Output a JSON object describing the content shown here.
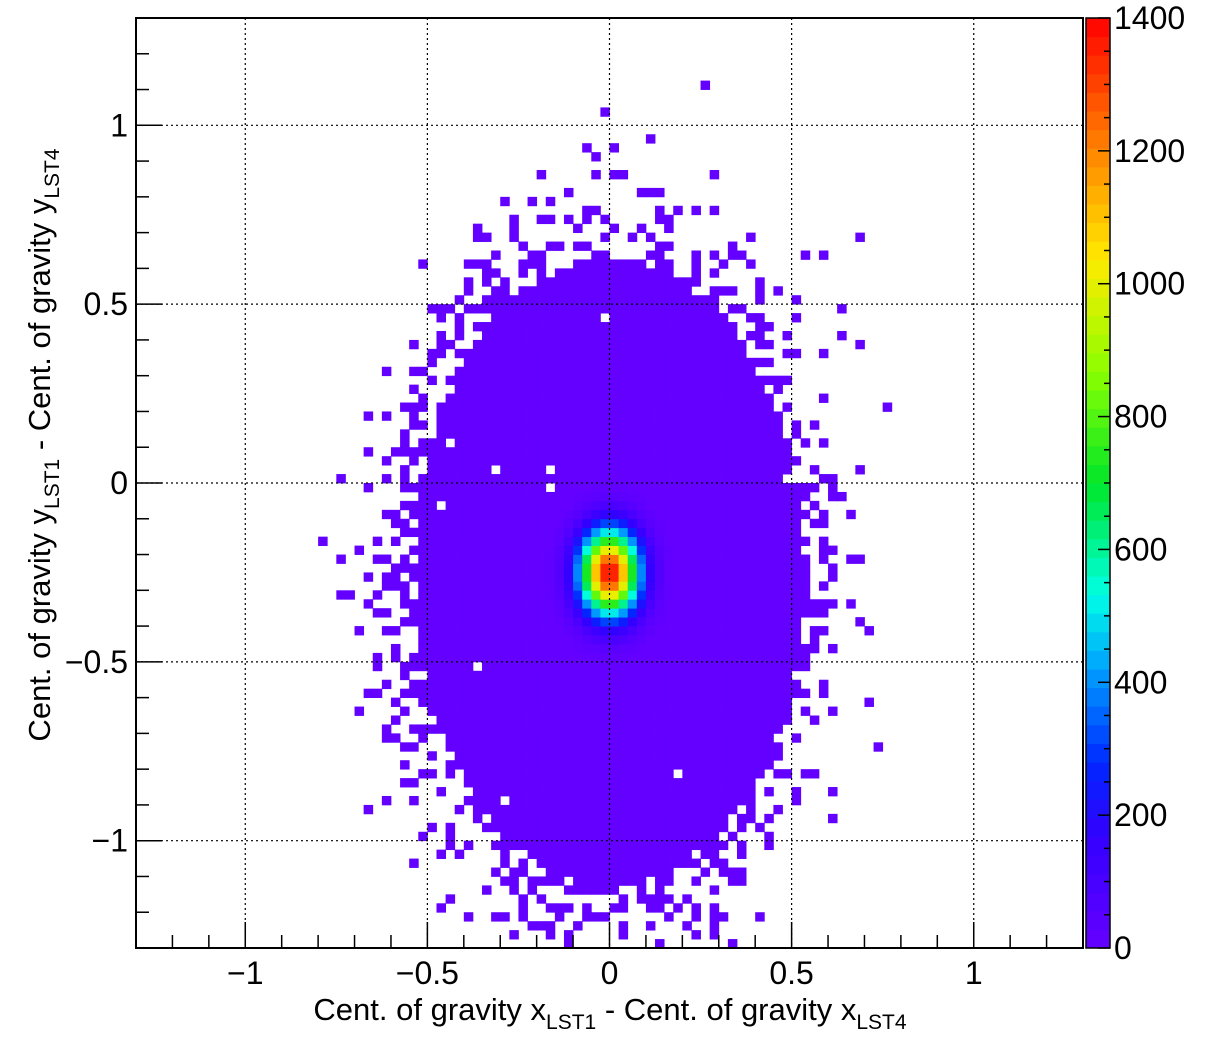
{
  "chart_data": {
    "type": "heatmap",
    "title": "",
    "xlabel": {
      "main": "Cent. of gravity x",
      "sub": "LST1",
      "mid": " - Cent. of gravity x",
      "sub2": "LST4"
    },
    "ylabel": {
      "main": "Cent. of gravity y",
      "sub": "LST1",
      "mid": " - Cent. of gravity y",
      "sub2": "LST4"
    },
    "xlim": [
      -1.3,
      1.3
    ],
    "ylim": [
      -1.3,
      1.3
    ],
    "zlim": [
      0,
      1400
    ],
    "xticks": [
      {
        "value": -1,
        "label": "−1"
      },
      {
        "value": -0.5,
        "label": "−0.5"
      },
      {
        "value": 0,
        "label": "0"
      },
      {
        "value": 0.5,
        "label": "0.5"
      },
      {
        "value": 1,
        "label": "1"
      }
    ],
    "yticks": [
      {
        "value": -1,
        "label": "−1"
      },
      {
        "value": -0.5,
        "label": "−0.5"
      },
      {
        "value": 0,
        "label": "0"
      },
      {
        "value": 0.5,
        "label": "0.5"
      },
      {
        "value": 1,
        "label": "1"
      }
    ],
    "zticks": [
      {
        "value": 0,
        "label": "0"
      },
      {
        "value": 200,
        "label": "200"
      },
      {
        "value": 400,
        "label": "400"
      },
      {
        "value": 600,
        "label": "600"
      },
      {
        "value": 800,
        "label": "800"
      },
      {
        "value": 1000,
        "label": "1000"
      },
      {
        "value": 1200,
        "label": "1200"
      },
      {
        "value": 1400,
        "label": "1400"
      }
    ],
    "grid": true,
    "colorbar": "right",
    "bins": {
      "nx": 104,
      "ny": 104
    },
    "peak": {
      "x": 0.02,
      "y": -0.24,
      "value": 1400
    },
    "distribution": {
      "core": {
        "x": 0.0,
        "y": -0.25,
        "sx": 0.055,
        "sy": 0.08,
        "peak": 1400
      },
      "halo": {
        "x": 0.0,
        "y": -0.25,
        "rx": 0.55,
        "ry": 0.9,
        "level": 10
      }
    }
  }
}
